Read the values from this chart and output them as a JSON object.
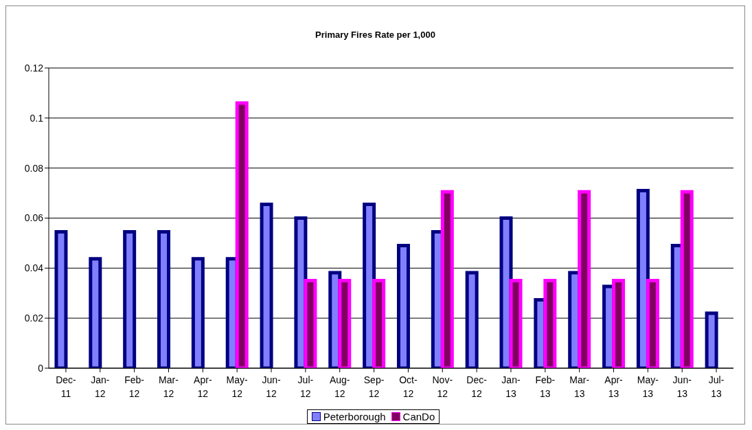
{
  "chart_data": {
    "type": "bar",
    "title": "Primary Fires Rate per 1,000",
    "categories": [
      "Dec-11",
      "Jan-12",
      "Feb-12",
      "Mar-12",
      "Apr-12",
      "May-12",
      "Jun-12",
      "Jul-12",
      "Aug-12",
      "Sep-12",
      "Oct-12",
      "Nov-12",
      "Dec-12",
      "Jan-13",
      "Feb-13",
      "Mar-13",
      "Apr-13",
      "May-13",
      "Jun-13",
      "Jul-13"
    ],
    "series": [
      {
        "name": "Peterborough",
        "color": "#8080ff",
        "values": [
          0.0545,
          0.0437,
          0.0545,
          0.0545,
          0.0437,
          0.0437,
          0.0655,
          0.06,
          0.0382,
          0.0655,
          0.049,
          0.0545,
          0.0382,
          0.06,
          0.0273,
          0.0382,
          0.0327,
          0.071,
          0.049,
          0.022
        ]
      },
      {
        "name": "CanDo",
        "color": "#800060",
        "values": [
          null,
          null,
          null,
          null,
          null,
          0.106,
          null,
          0.035,
          0.035,
          0.035,
          null,
          0.0705,
          null,
          0.035,
          0.035,
          0.0705,
          0.035,
          0.035,
          0.0705,
          null
        ]
      }
    ],
    "ylim": [
      0,
      0.12
    ],
    "yticks": [
      0,
      0.02,
      0.04,
      0.06,
      0.08,
      0.1,
      0.12
    ],
    "grid": "y",
    "legend": "bottom"
  }
}
